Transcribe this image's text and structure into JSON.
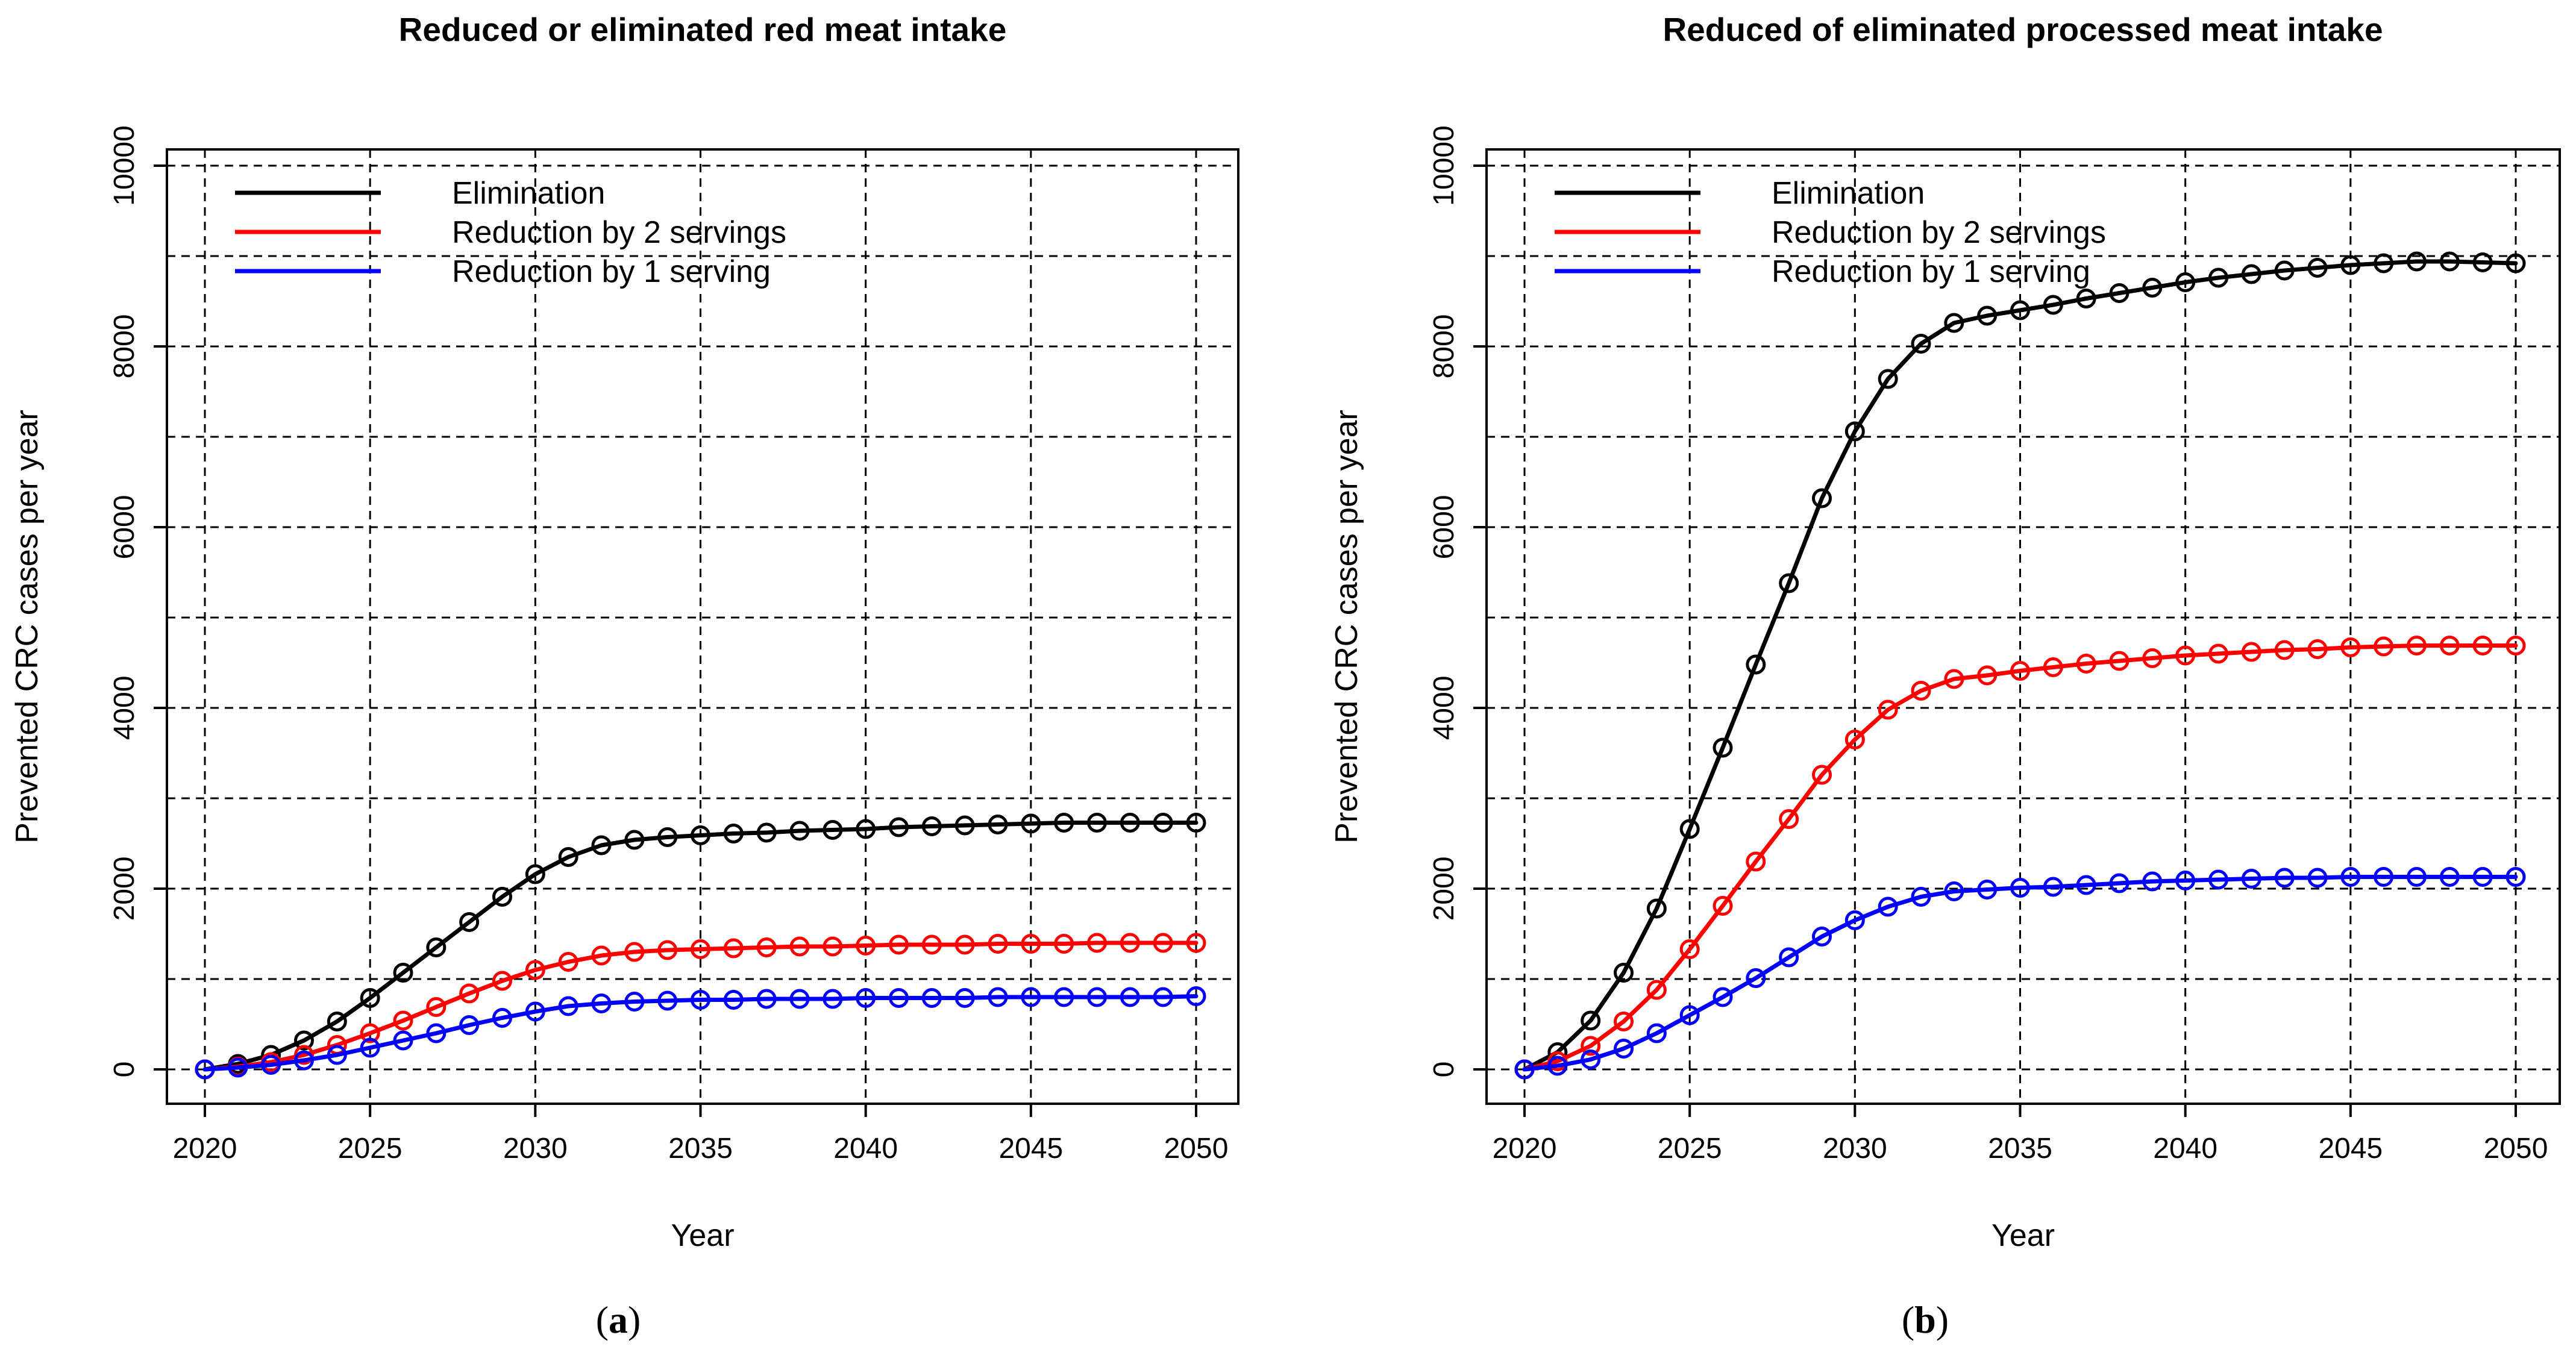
{
  "colors": {
    "elimination": "#000000",
    "reduction_2": "#ff0000",
    "reduction_1": "#0000ff",
    "grid": "#000000",
    "axis": "#000000"
  },
  "chart_data": [
    {
      "type": "line",
      "panel_label": "a",
      "title": "Reduced or eliminated red meat intake",
      "xlabel": "Year",
      "ylabel": "Prevented CRC cases per year",
      "xlim": [
        2020,
        2050
      ],
      "ylim": [
        0,
        10000
      ],
      "x_ticks": [
        2020,
        2025,
        2030,
        2035,
        2040,
        2045,
        2050
      ],
      "y_ticks": [
        0,
        2000,
        4000,
        6000,
        8000,
        10000
      ],
      "y_grid": [
        0,
        1000,
        2000,
        3000,
        4000,
        5000,
        6000,
        7000,
        8000,
        9000,
        10000
      ],
      "grid": true,
      "legend_position": "top-left",
      "x": [
        2020,
        2021,
        2022,
        2023,
        2024,
        2025,
        2026,
        2027,
        2028,
        2029,
        2030,
        2031,
        2032,
        2033,
        2034,
        2035,
        2036,
        2037,
        2038,
        2039,
        2040,
        2041,
        2042,
        2043,
        2044,
        2045,
        2046,
        2047,
        2048,
        2049,
        2050
      ],
      "series": [
        {
          "name": "Elimination",
          "color_key": "elimination",
          "values": [
            0,
            60,
            160,
            320,
            530,
            790,
            1070,
            1350,
            1630,
            1910,
            2160,
            2350,
            2480,
            2540,
            2570,
            2590,
            2610,
            2620,
            2640,
            2650,
            2660,
            2680,
            2690,
            2700,
            2710,
            2720,
            2730,
            2730,
            2730,
            2730,
            2730
          ]
        },
        {
          "name": "Reduction by 2 servings",
          "color_key": "reduction_2",
          "values": [
            0,
            30,
            80,
            160,
            270,
            400,
            540,
            690,
            840,
            980,
            1100,
            1190,
            1260,
            1300,
            1320,
            1330,
            1340,
            1350,
            1360,
            1360,
            1370,
            1380,
            1380,
            1380,
            1390,
            1390,
            1390,
            1400,
            1400,
            1400,
            1400
          ]
        },
        {
          "name": "Reduction by 1 serving",
          "color_key": "reduction_1",
          "values": [
            0,
            20,
            50,
            100,
            160,
            240,
            320,
            400,
            490,
            570,
            640,
            700,
            730,
            750,
            760,
            770,
            770,
            780,
            780,
            780,
            790,
            790,
            790,
            790,
            800,
            800,
            800,
            800,
            800,
            800,
            810
          ]
        }
      ]
    },
    {
      "type": "line",
      "panel_label": "b",
      "title": "Reduced of eliminated processed meat intake",
      "xlabel": "Year",
      "ylabel": "Prevented CRC cases per year",
      "xlim": [
        2020,
        2050
      ],
      "ylim": [
        0,
        10000
      ],
      "x_ticks": [
        2020,
        2025,
        2030,
        2035,
        2040,
        2045,
        2050
      ],
      "y_ticks": [
        0,
        2000,
        4000,
        6000,
        8000,
        10000
      ],
      "y_grid": [
        0,
        1000,
        2000,
        3000,
        4000,
        5000,
        6000,
        7000,
        8000,
        9000,
        10000
      ],
      "grid": true,
      "legend_position": "top-left",
      "x": [
        2020,
        2021,
        2022,
        2023,
        2024,
        2025,
        2026,
        2027,
        2028,
        2029,
        2030,
        2031,
        2032,
        2033,
        2034,
        2035,
        2036,
        2037,
        2038,
        2039,
        2040,
        2041,
        2042,
        2043,
        2044,
        2045,
        2046,
        2047,
        2048,
        2049,
        2050
      ],
      "series": [
        {
          "name": "Elimination",
          "color_key": "elimination",
          "values": [
            0,
            190,
            540,
            1070,
            1780,
            2660,
            3560,
            4480,
            5380,
            6320,
            7060,
            7640,
            8030,
            8260,
            8340,
            8400,
            8460,
            8530,
            8590,
            8650,
            8710,
            8760,
            8800,
            8840,
            8870,
            8900,
            8920,
            8940,
            8940,
            8930,
            8920
          ]
        },
        {
          "name": "Reduction by 2 servings",
          "color_key": "reduction_2",
          "values": [
            0,
            90,
            260,
            530,
            880,
            1330,
            1810,
            2300,
            2770,
            3260,
            3650,
            3980,
            4190,
            4320,
            4360,
            4410,
            4450,
            4490,
            4520,
            4550,
            4580,
            4600,
            4620,
            4640,
            4650,
            4670,
            4680,
            4690,
            4690,
            4690,
            4690
          ]
        },
        {
          "name": "Reduction by 1 serving",
          "color_key": "reduction_1",
          "values": [
            0,
            40,
            110,
            230,
            400,
            600,
            800,
            1010,
            1240,
            1470,
            1650,
            1800,
            1910,
            1970,
            1990,
            2010,
            2020,
            2040,
            2060,
            2080,
            2090,
            2100,
            2110,
            2120,
            2120,
            2130,
            2130,
            2130,
            2130,
            2130,
            2130
          ]
        }
      ]
    }
  ]
}
